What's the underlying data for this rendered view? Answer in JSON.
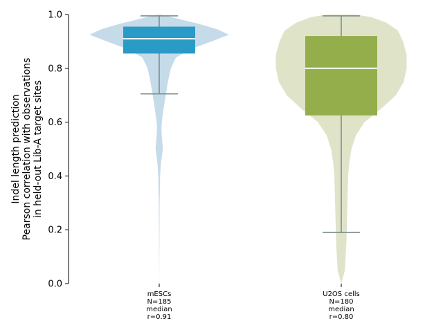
{
  "chart_data": {
    "type": "violin",
    "title": "",
    "xlabel": "",
    "ylabel_lines": [
      "Indel length prediction",
      "Pearson correlation with observations",
      "in held-out Lib-A target sites"
    ],
    "ylim": [
      0.0,
      1.0
    ],
    "yticks": [
      "0.0",
      "0.2",
      "0.4",
      "0.6",
      "0.8",
      "1.0"
    ],
    "grid": false,
    "legend": "none",
    "groups": [
      {
        "category_lines": [
          "mESCs",
          "N=185",
          "median",
          "r=0.91"
        ],
        "box_color": "#2a9bc7",
        "violin_color": "#c5dbea",
        "whisker_low": 0.705,
        "q1": 0.855,
        "median": 0.91,
        "q3": 0.955,
        "whisker_high": 0.995,
        "density": [
          [
            0.0,
            0.0
          ],
          [
            0.05,
            0.001
          ],
          [
            0.1,
            0.002
          ],
          [
            0.2,
            0.004
          ],
          [
            0.3,
            0.006
          ],
          [
            0.4,
            0.012
          ],
          [
            0.45,
            0.025
          ],
          [
            0.48,
            0.04
          ],
          [
            0.5,
            0.05
          ],
          [
            0.52,
            0.045
          ],
          [
            0.55,
            0.035
          ],
          [
            0.58,
            0.03
          ],
          [
            0.6,
            0.035
          ],
          [
            0.65,
            0.06
          ],
          [
            0.7,
            0.09
          ],
          [
            0.75,
            0.12
          ],
          [
            0.8,
            0.16
          ],
          [
            0.84,
            0.23
          ],
          [
            0.87,
            0.42
          ],
          [
            0.9,
            0.72
          ],
          [
            0.925,
            0.96
          ],
          [
            0.945,
            0.8
          ],
          [
            0.965,
            0.55
          ],
          [
            0.98,
            0.32
          ],
          [
            0.995,
            0.1
          ],
          [
            1.0,
            0.02
          ]
        ]
      },
      {
        "category_lines": [
          "U2OS cells",
          "N=180",
          "median",
          "r=0.80"
        ],
        "box_color": "#93ae4b",
        "violin_color": "#dfe4c9",
        "whisker_low": 0.19,
        "q1": 0.625,
        "median": 0.8,
        "q3": 0.92,
        "whisker_high": 0.995,
        "density": [
          [
            0.0,
            0.0
          ],
          [
            0.02,
            0.02
          ],
          [
            0.05,
            0.05
          ],
          [
            0.1,
            0.06
          ],
          [
            0.15,
            0.07
          ],
          [
            0.2,
            0.075
          ],
          [
            0.3,
            0.085
          ],
          [
            0.4,
            0.095
          ],
          [
            0.45,
            0.11
          ],
          [
            0.5,
            0.14
          ],
          [
            0.55,
            0.2
          ],
          [
            0.6,
            0.32
          ],
          [
            0.65,
            0.55
          ],
          [
            0.7,
            0.75
          ],
          [
            0.75,
            0.86
          ],
          [
            0.8,
            0.9
          ],
          [
            0.85,
            0.9
          ],
          [
            0.9,
            0.85
          ],
          [
            0.94,
            0.78
          ],
          [
            0.97,
            0.62
          ],
          [
            0.99,
            0.42
          ],
          [
            1.0,
            0.2
          ]
        ]
      }
    ]
  }
}
